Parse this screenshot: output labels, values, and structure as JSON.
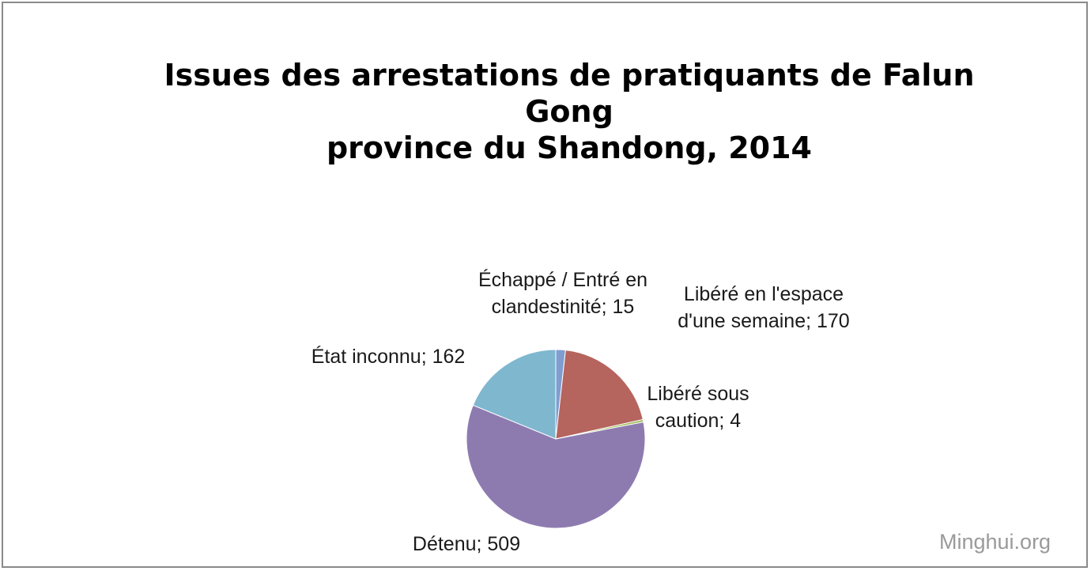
{
  "chart_data": {
    "type": "pie",
    "title_lines": [
      "Issues des arrestations de pratiquants de Falun",
      "Gong",
      "province du Shandong, 2014"
    ],
    "slices": [
      {
        "label_lines": [
          "Échappé / Entré en",
          "clandestinité; 15"
        ],
        "category": "Échappé / Entré en clandestinité",
        "value": 15,
        "color": "#7f9dd0"
      },
      {
        "label_lines": [
          "Libéré en l'espace",
          "d'une semaine; 170"
        ],
        "category": "Libéré en l'espace d'une semaine",
        "value": 170,
        "color": "#b5645e"
      },
      {
        "label_lines": [
          "Libéré sous",
          "caution; 4"
        ],
        "category": "Libéré sous caution",
        "value": 4,
        "color": "#a3c05f"
      },
      {
        "label_lines": [
          "Détenu; 509"
        ],
        "category": "Détenu",
        "value": 509,
        "color": "#8d7bb0"
      },
      {
        "label_lines": [
          "État inconnu; 162"
        ],
        "category": "État inconnu",
        "value": 162,
        "color": "#7fb7cf"
      }
    ],
    "start": "top",
    "direction": "clockwise",
    "legend": "none"
  },
  "watermark": "Minghui.org"
}
